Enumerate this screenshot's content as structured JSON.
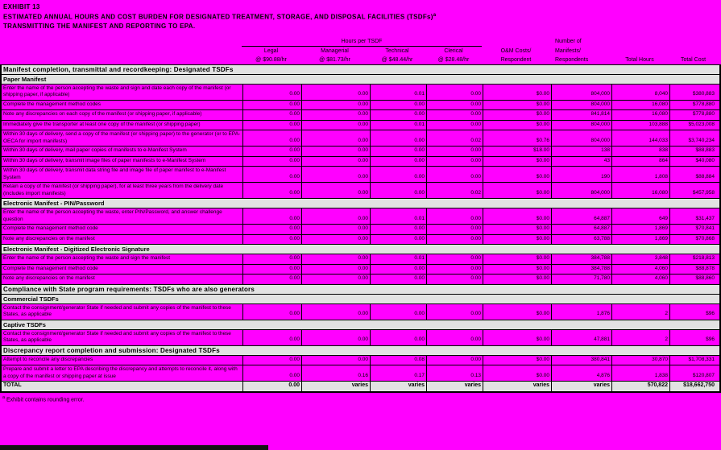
{
  "title": {
    "line1": "EXHIBIT 13",
    "line2": "ESTIMATED ANNUAL HOURS AND COST BURDEN FOR DESIGNATED TREATMENT, STORAGE, AND DISPOSAL FACILITIES (TSDFs)",
    "line2_superscript": "a",
    "line3": "TRANSMITTING THE MANIFEST AND REPORTING TO EPA."
  },
  "colors": {
    "background": "#FF00FF",
    "band": "#E2E2E2",
    "border": "#000000"
  },
  "table": {
    "group_header": "Hours per TSDF",
    "columns": [
      {
        "l1": "Legal",
        "l2": "@ $90.88/hr"
      },
      {
        "l1": "Managerial",
        "l2": "@ $81.73/hr"
      },
      {
        "l1": "Technical",
        "l2": "@ $48.44/hr"
      },
      {
        "l1": "Clerical",
        "l2": "@ $28.48/hr"
      },
      {
        "l1": "O&M Costs/",
        "l2": "Respondent"
      },
      {
        "l1": "Number of",
        "l2": "Manifests/",
        "l3": "Respondents"
      },
      {
        "l1": "Total Hours"
      },
      {
        "l1": "Total Cost"
      }
    ],
    "rows": [
      {
        "type": "section",
        "label": "Manifest completion, transmittal and recordkeeping:  Designated TSDFs"
      },
      {
        "type": "subsection",
        "label": "Paper Manifest"
      },
      {
        "type": "data",
        "label": "Enter the name of the person accepting the waste and sign and date each copy of the manifest (or shipping paper, if applicable)",
        "values": [
          "0.00",
          "0.00",
          "0.01",
          "0.00",
          "$0.00",
          "804,000",
          "8,040",
          "$380,883"
        ]
      },
      {
        "type": "data",
        "label": "Complete the management method codes",
        "values": [
          "0.00",
          "0.00",
          "0.00",
          "0.00",
          "$0.00",
          "804,000",
          "16,080",
          "$778,880"
        ]
      },
      {
        "type": "data",
        "label": "Note any discrepancies on each copy of the manifest (or shipping paper, if applicable)",
        "values": [
          "0.00",
          "0.00",
          "0.00",
          "0.00",
          "$0.00",
          "841,814",
          "16,080",
          "$778,880"
        ]
      },
      {
        "type": "data",
        "label": "Immediately give the transporter at least one copy of the manifest (or shipping paper)",
        "values": [
          "0.00",
          "0.00",
          "0.01",
          "0.00",
          "$0.00",
          "804,000",
          "103,888",
          "$5,023,008"
        ]
      },
      {
        "type": "data",
        "label": "Within 30 days of delivery, send a copy of the manifest (or shipping paper) to the generator (or to EPA-OECA for import manifests)",
        "values": [
          "0.00",
          "0.00",
          "0.00",
          "0.02",
          "$0.76",
          "804,000",
          "144,033",
          "$3,740,234"
        ]
      },
      {
        "type": "data",
        "label": "Within 30 days of delivery, mail paper copies of manifests to e-Manifest System",
        "values": [
          "0.00",
          "0.00",
          "0.00",
          "0.00",
          "$18.00",
          "138",
          "838",
          "$88,883"
        ]
      },
      {
        "type": "data",
        "label": "Within 30 days of delivery, transmit image files of paper manifests to e-Manifest System",
        "values": [
          "0.00",
          "0.00",
          "0.00",
          "0.00",
          "$0.00",
          "43",
          "864",
          "$40,080"
        ]
      },
      {
        "type": "data",
        "label": "Within 30 days of delivery, transmit data string file and image file of paper manifest to e-Manifest System",
        "values": [
          "0.00",
          "0.00",
          "0.00",
          "0.00",
          "$0.00",
          "190",
          "1,808",
          "$88,884"
        ]
      },
      {
        "type": "data",
        "label": "Retain a copy of the manifest (or shipping paper), for at least three years from the delivery date (includes import manifests)",
        "values": [
          "0.00",
          "0.00",
          "0.00",
          "0.02",
          "$0.00",
          "804,000",
          "16,080",
          "$457,958"
        ]
      },
      {
        "type": "subsection",
        "label": "Electronic Manifest - PIN/Password"
      },
      {
        "type": "data",
        "label": "Enter the name of the person accepting the waste, enter PIN/Password, and answer challenge question",
        "values": [
          "0.00",
          "0.00",
          "0.01",
          "0.00",
          "$0.00",
          "64,887",
          "649",
          "$31,437"
        ]
      },
      {
        "type": "data",
        "label": "Complete the management method code",
        "values": [
          "0.00",
          "0.00",
          "0.00",
          "0.00",
          "$0.00",
          "64,887",
          "1,869",
          "$70,841"
        ]
      },
      {
        "type": "data",
        "label": "Note any discrepancies on the manifest",
        "values": [
          "0.00",
          "0.00",
          "0.00",
          "0.00",
          "$0.00",
          "63,788",
          "1,869",
          "$70,868"
        ]
      },
      {
        "type": "subsection",
        "label": "Electronic Manifest - Digitized Electronic Signature"
      },
      {
        "type": "data",
        "label": "Enter the name of the person accepting the waste and sign the manifest",
        "values": [
          "0.00",
          "0.00",
          "0.01",
          "0.00",
          "$0.00",
          "384,788",
          "3,848",
          "$218,813"
        ]
      },
      {
        "type": "data",
        "label": "Complete the management method code",
        "values": [
          "0.00",
          "0.00",
          "0.00",
          "0.00",
          "$0.00",
          "384,788",
          "4,060",
          "$88,878"
        ]
      },
      {
        "type": "data",
        "label": "Note any discrepancies on the manifest",
        "values": [
          "0.00",
          "0.00",
          "0.00",
          "0.00",
          "$0.00",
          "71,780",
          "4,060",
          "$88,860"
        ]
      },
      {
        "type": "section",
        "label": "Compliance with State program requirements:  TSDFs who are also generators"
      },
      {
        "type": "subsection",
        "label": "Commercial TSDFs"
      },
      {
        "type": "data",
        "label": "Contact the consignment/generator State if needed and submit any copies of the manifest to these States, as applicable",
        "values": [
          "0.00",
          "0.00",
          "0.00",
          "0.00",
          "$0.00",
          "1,876",
          "2",
          "$96"
        ]
      },
      {
        "type": "subsection",
        "label": "Captive TSDFs"
      },
      {
        "type": "data",
        "label": "Contact the consignment/generator State if needed and submit any copies of the manifest to these States, as applicable",
        "values": [
          "0.00",
          "0.00",
          "0.00",
          "0.00",
          "$0.00",
          "47,881",
          "2",
          "$96"
        ]
      },
      {
        "type": "section",
        "label": "Discrepancy report completion and submission:  Designated TSDFs"
      },
      {
        "type": "data",
        "label": "Attempt to reconcile any discrepancies",
        "values": [
          "0.00",
          "0.00",
          "0.08",
          "0.00",
          "$0.00",
          "380,841",
          "30,870",
          "$1,708,331"
        ]
      },
      {
        "type": "data",
        "label": "Prepare and submit a letter to EPA describing the discrepancy and attempts to reconcile it, along with a copy of the manifest or shipping paper at issue",
        "values": [
          "0.00",
          "0.16",
          "0.17",
          "0.13",
          "$0.00",
          "4,876",
          "1,838",
          "$120,807"
        ]
      },
      {
        "type": "total",
        "label": "TOTAL",
        "values": [
          "0.00",
          "varies",
          "varies",
          "varies",
          "varies",
          "varies",
          "570,822",
          "$18,662,750"
        ]
      }
    ]
  },
  "footnote": {
    "marker": "a",
    "text": " Exhibit contains rounding error."
  }
}
